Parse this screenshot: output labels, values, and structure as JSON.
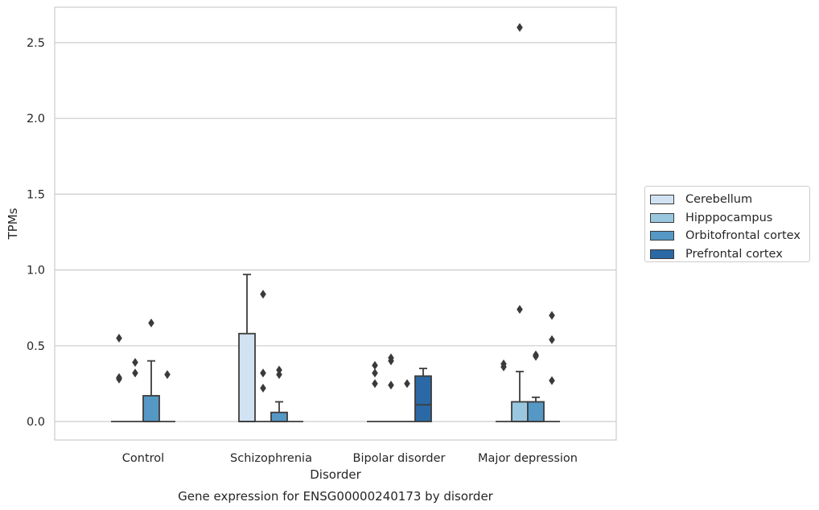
{
  "chart_data": {
    "type": "box",
    "title": "Gene expression for ENSG00000240173 by disorder",
    "xlabel": "Disorder",
    "ylabel": "TPMs",
    "ylim": [
      -0.13,
      2.74
    ],
    "yticks": [
      "0.0",
      "0.5",
      "1.0",
      "1.5",
      "2.0",
      "2.5"
    ],
    "grid": true,
    "legend_position": "right",
    "categories": [
      "Control",
      "Schizophrenia",
      "Bipolar disorder",
      "Major depression"
    ],
    "series": [
      {
        "name": "Cerebellum",
        "color": "#d1e2f2",
        "boxes": [
          {
            "min": 0,
            "q1": 0,
            "median": 0,
            "q3": 0,
            "max": 0,
            "outliers": [
              0.28,
              0.29,
              0.55
            ]
          },
          {
            "min": 0,
            "q1": 0,
            "median": 0,
            "q3": 0.58,
            "max": 0.97,
            "outliers": []
          },
          {
            "min": 0,
            "q1": 0,
            "median": 0,
            "q3": 0,
            "max": 0,
            "outliers": [
              0.25,
              0.32,
              0.37
            ]
          },
          {
            "min": 0,
            "q1": 0,
            "median": 0,
            "q3": 0,
            "max": 0,
            "outliers": [
              0.36,
              0.38
            ]
          }
        ]
      },
      {
        "name": "Hipppocampus",
        "color": "#9ac7e0",
        "boxes": [
          {
            "min": 0,
            "q1": 0,
            "median": 0,
            "q3": 0,
            "max": 0,
            "outliers": [
              0.32,
              0.39
            ]
          },
          {
            "min": 0,
            "q1": 0,
            "median": 0,
            "q3": 0,
            "max": 0,
            "outliers": [
              0.22,
              0.32,
              0.84
            ]
          },
          {
            "min": 0,
            "q1": 0,
            "median": 0,
            "q3": 0,
            "max": 0,
            "outliers": [
              0.24,
              0.4,
              0.42
            ]
          },
          {
            "min": 0,
            "q1": 0,
            "median": 0,
            "q3": 0.13,
            "max": 0.33,
            "outliers": [
              0.74,
              2.6
            ]
          }
        ]
      },
      {
        "name": "Orbitofrontal cortex",
        "color": "#5598c5",
        "boxes": [
          {
            "min": 0,
            "q1": 0,
            "median": 0,
            "q3": 0.17,
            "max": 0.4,
            "outliers": [
              0.65
            ]
          },
          {
            "min": 0,
            "q1": 0,
            "median": 0,
            "q3": 0.06,
            "max": 0.13,
            "outliers": [
              0.31,
              0.34
            ]
          },
          {
            "min": 0,
            "q1": 0,
            "median": 0,
            "q3": 0,
            "max": 0,
            "outliers": [
              0.25
            ]
          },
          {
            "min": 0,
            "q1": 0,
            "median": 0,
            "q3": 0.13,
            "max": 0.16,
            "outliers": [
              0.43,
              0.44
            ]
          }
        ]
      },
      {
        "name": "Prefrontal cortex",
        "color": "#2a69a5",
        "boxes": [
          {
            "min": 0,
            "q1": 0,
            "median": 0,
            "q3": 0,
            "max": 0,
            "outliers": [
              0.31
            ]
          },
          {
            "min": 0,
            "q1": 0,
            "median": 0,
            "q3": 0,
            "max": 0,
            "outliers": []
          },
          {
            "min": 0,
            "q1": 0,
            "median": 0.11,
            "q3": 0.3,
            "max": 0.35,
            "outliers": []
          },
          {
            "min": 0,
            "q1": 0,
            "median": 0,
            "q3": 0,
            "max": 0,
            "outliers": [
              0.27,
              0.54,
              0.7
            ]
          }
        ]
      }
    ]
  }
}
